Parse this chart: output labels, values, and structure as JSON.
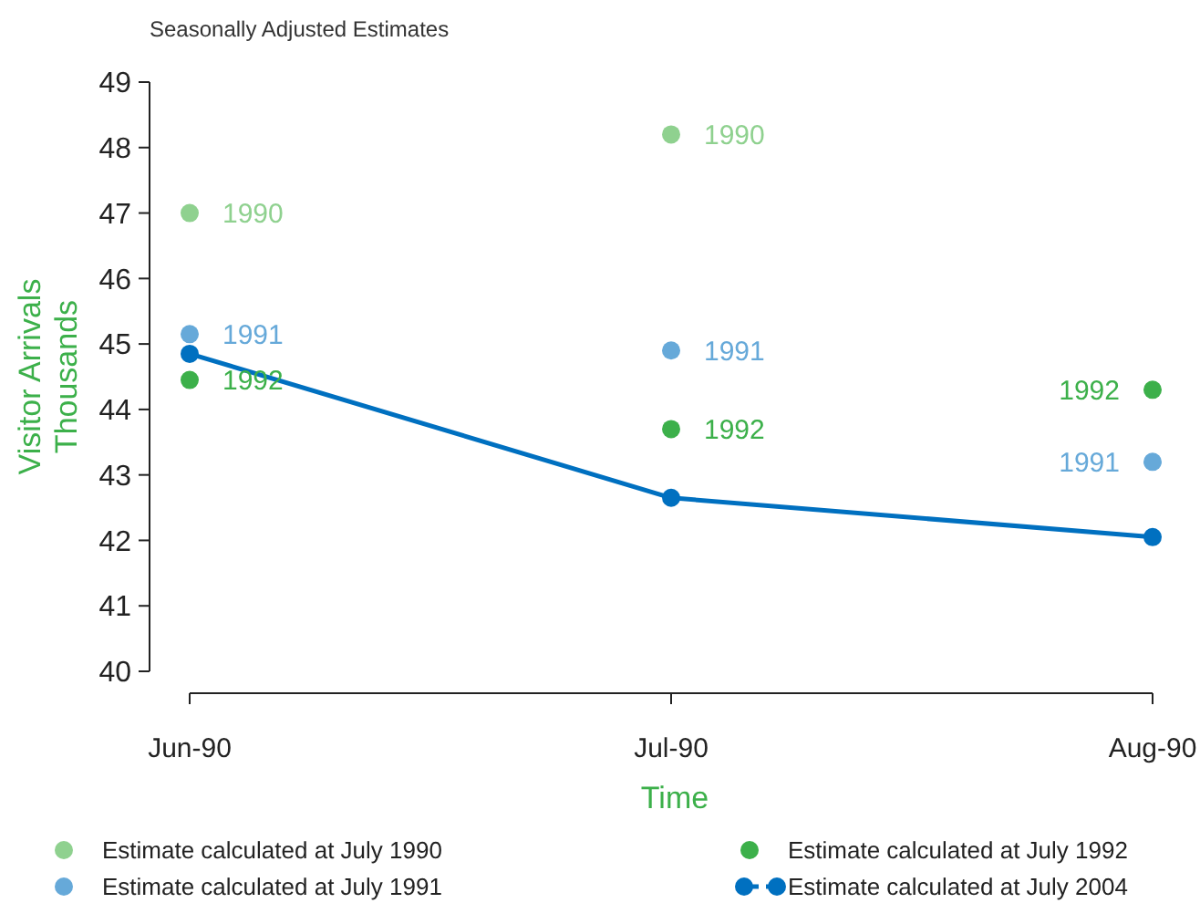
{
  "chart_data": {
    "type": "scatter",
    "title": "Seasonally Adjusted Estimates",
    "xlabel": "Time",
    "ylabel": "Visitor Arrivals\nThousands",
    "categories": [
      "Jun-90",
      "Jul-90",
      "Aug-90"
    ],
    "series": [
      {
        "name": "Estimate calculated at July 1990",
        "color": "#8fd18f",
        "values": [
          47.0,
          48.2,
          null
        ]
      },
      {
        "name": "Estimate calculated at July 1991",
        "color": "#66a9d9",
        "values": [
          45.15,
          44.9,
          43.2
        ]
      },
      {
        "name": "Estimate calculated at July 1992",
        "color": "#3cb04a",
        "values": [
          44.45,
          43.7,
          44.3
        ]
      },
      {
        "name": "Estimate calculated at July 2004",
        "color": "#0070c0",
        "type": "line",
        "values": [
          44.85,
          42.65,
          42.05
        ]
      }
    ],
    "annotations": [
      {
        "text": "1990",
        "x": "Jun-90",
        "y": 47.0
      },
      {
        "text": "1991",
        "x": "Jun-90",
        "y": 45.15
      },
      {
        "text": "1992",
        "x": "Jun-90",
        "y": 44.45
      },
      {
        "text": "1990",
        "x": "Jul-90",
        "y": 48.2
      },
      {
        "text": "1991",
        "x": "Jul-90",
        "y": 44.9
      },
      {
        "text": "1992",
        "x": "Jul-90",
        "y": 43.7
      },
      {
        "text": "1992",
        "x": "Aug-90",
        "y": 44.3
      },
      {
        "text": "1991",
        "x": "Aug-90",
        "y": 43.2
      }
    ],
    "ylim": [
      40,
      49
    ],
    "yticks": [
      40,
      41,
      42,
      43,
      44,
      45,
      46,
      47,
      48,
      49
    ],
    "grid": false,
    "legend": "bottom",
    "marker": "circle",
    "line_style": "solid"
  }
}
